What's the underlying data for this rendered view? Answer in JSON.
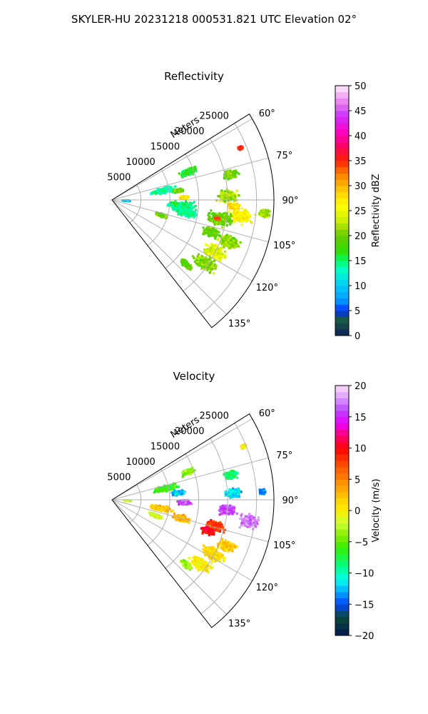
{
  "figure": {
    "title": "SKYLER-HU  20231218  000531.821 UTC Elevation 02°"
  },
  "chart_data": [
    {
      "type": "heatmap",
      "title": "Reflectivity",
      "range_label": "Meters",
      "range_ticks": [
        "5000",
        "10000",
        "15000",
        "20000",
        "25000"
      ],
      "range_values": [
        5000,
        10000,
        15000,
        20000,
        25000
      ],
      "rmax": 28000,
      "azimuth_ticks": [
        "60°",
        "75°",
        "90°",
        "105°",
        "120°",
        "135°"
      ],
      "azimuth_values": [
        60,
        75,
        90,
        105,
        120,
        135
      ],
      "azimuth_range": [
        58,
        142
      ],
      "grid": true,
      "colorbar": {
        "label": "Reflectivity dBZ",
        "min": 0,
        "max": 50,
        "ticks": [
          "0",
          "5",
          "10",
          "15",
          "20",
          "25",
          "30",
          "35",
          "40",
          "45",
          "50"
        ],
        "tick_values": [
          0,
          5,
          10,
          15,
          20,
          25,
          30,
          35,
          40,
          45,
          50
        ]
      },
      "cells": [
        {
          "az": 93,
          "r": 2500,
          "v": 10,
          "spread": 800
        },
        {
          "az": 80,
          "r": 9000,
          "v": 14,
          "spread": 2500
        },
        {
          "az": 82,
          "r": 11500,
          "v": 20,
          "spread": 1200
        },
        {
          "az": 88,
          "r": 12500,
          "v": 27,
          "spread": 900
        },
        {
          "az": 70,
          "r": 14000,
          "v": 16,
          "spread": 1800
        },
        {
          "az": 95,
          "r": 12000,
          "v": 15,
          "spread": 3000
        },
        {
          "az": 100,
          "r": 13000,
          "v": 14,
          "spread": 2200
        },
        {
          "az": 107,
          "r": 9000,
          "v": 20,
          "spread": 1500
        },
        {
          "az": 78,
          "r": 21000,
          "v": 20,
          "spread": 1600
        },
        {
          "az": 88,
          "r": 20000,
          "v": 22,
          "spread": 2200
        },
        {
          "az": 93,
          "r": 21000,
          "v": 28,
          "spread": 1200
        },
        {
          "az": 97,
          "r": 22500,
          "v": 27,
          "spread": 2500
        },
        {
          "az": 100,
          "r": 19000,
          "v": 20,
          "spread": 2800
        },
        {
          "az": 108,
          "r": 18000,
          "v": 20,
          "spread": 2000
        },
        {
          "az": 110,
          "r": 21500,
          "v": 21,
          "spread": 2300
        },
        {
          "az": 117,
          "r": 20000,
          "v": 24,
          "spread": 2600
        },
        {
          "az": 124,
          "r": 19500,
          "v": 21,
          "spread": 2600
        },
        {
          "az": 131,
          "r": 17000,
          "v": 19,
          "spread": 1400
        },
        {
          "az": 95,
          "r": 26500,
          "v": 22,
          "spread": 1200
        },
        {
          "az": 68,
          "r": 24000,
          "v": 35,
          "spread": 500
        },
        {
          "az": 100,
          "r": 18500,
          "v": 34,
          "spread": 500
        }
      ]
    },
    {
      "type": "heatmap",
      "title": "Velocity",
      "range_label": "Meters",
      "range_ticks": [
        "5000",
        "10000",
        "15000",
        "20000",
        "25000"
      ],
      "range_values": [
        5000,
        10000,
        15000,
        20000,
        25000
      ],
      "rmax": 28000,
      "azimuth_ticks": [
        "60°",
        "75°",
        "90°",
        "105°",
        "120°",
        "135°"
      ],
      "azimuth_values": [
        60,
        75,
        90,
        105,
        120,
        135
      ],
      "azimuth_range": [
        58,
        142
      ],
      "grid": true,
      "colorbar": {
        "label": "Velocity (m/s)",
        "min": -20,
        "max": 20,
        "ticks": [
          "−20",
          "−15",
          "−10",
          "−5",
          "0",
          "5",
          "10",
          "15",
          "20"
        ],
        "tick_values": [
          -20,
          -15,
          -10,
          -5,
          0,
          5,
          10,
          15,
          20
        ]
      },
      "cells": [
        {
          "az": 93,
          "r": 2500,
          "v": -2,
          "spread": 800
        },
        {
          "az": 78,
          "r": 9500,
          "v": -6,
          "spread": 2500
        },
        {
          "az": 84,
          "r": 11500,
          "v": -12,
          "spread": 1500
        },
        {
          "az": 70,
          "r": 14000,
          "v": -4,
          "spread": 1500
        },
        {
          "az": 92,
          "r": 12500,
          "v": 16,
          "spread": 1500
        },
        {
          "az": 100,
          "r": 8500,
          "v": 2,
          "spread": 2500
        },
        {
          "az": 105,
          "r": 12500,
          "v": 3,
          "spread": 2000
        },
        {
          "az": 110,
          "r": 8000,
          "v": -2,
          "spread": 1500
        },
        {
          "az": 78,
          "r": 21000,
          "v": -8,
          "spread": 1500
        },
        {
          "az": 87,
          "r": 21000,
          "v": -12,
          "spread": 1800
        },
        {
          "az": 95,
          "r": 20000,
          "v": 16,
          "spread": 2000
        },
        {
          "az": 99,
          "r": 24000,
          "v": 17,
          "spread": 2200
        },
        {
          "az": 104,
          "r": 18500,
          "v": 8,
          "spread": 2000
        },
        {
          "az": 108,
          "r": 17500,
          "v": 10,
          "spread": 1500
        },
        {
          "az": 112,
          "r": 21500,
          "v": 2,
          "spread": 2000
        },
        {
          "az": 118,
          "r": 20000,
          "v": 1,
          "spread": 2500
        },
        {
          "az": 126,
          "r": 19000,
          "v": 0,
          "spread": 2500
        },
        {
          "az": 131,
          "r": 17000,
          "v": -3,
          "spread": 1400
        },
        {
          "az": 68,
          "r": 24500,
          "v": 1,
          "spread": 600
        },
        {
          "az": 87,
          "r": 26000,
          "v": -14,
          "spread": 700
        }
      ]
    }
  ]
}
